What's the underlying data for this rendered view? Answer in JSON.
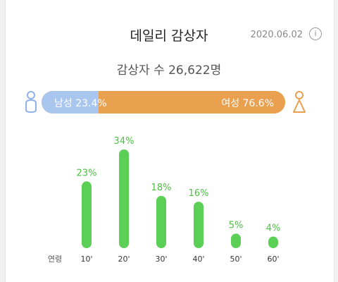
{
  "header": {
    "title": "데일리 감상자",
    "date": "2020.06.02",
    "info_icon": "info-icon"
  },
  "summary": {
    "total_label": "감상자 수 26,622명"
  },
  "gender": {
    "male_label": "남성 23.4%",
    "female_label": "여성 76.6%",
    "male_share": 0.234,
    "female_share": 0.766,
    "colors": {
      "male": "#a9c6ee",
      "female": "#e9a04f"
    },
    "icons": {
      "male": "male-person-icon",
      "female": "female-person-icon"
    }
  },
  "chart_data": {
    "type": "bar",
    "xlabel": "연령",
    "categories": [
      "10'",
      "20'",
      "30'",
      "40'",
      "50'",
      "60'"
    ],
    "values": [
      23,
      34,
      18,
      16,
      5,
      4
    ],
    "value_labels": [
      "23%",
      "34%",
      "18%",
      "16%",
      "5%",
      "4%"
    ],
    "ylim": [
      0,
      34
    ],
    "color": "#5ccf57",
    "label_color": "#4fbf45"
  }
}
